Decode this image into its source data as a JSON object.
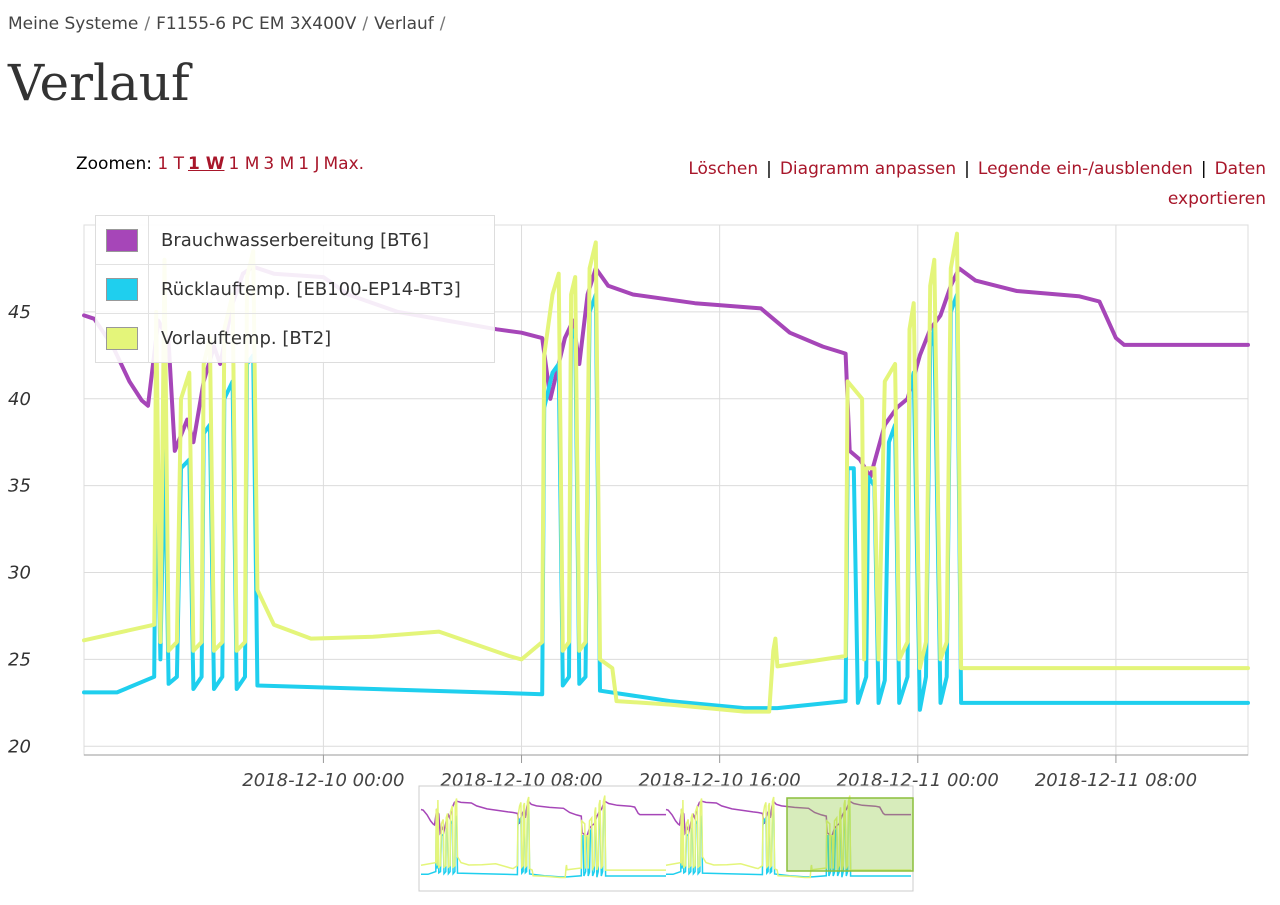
{
  "breadcrumb": [
    "Meine Systeme",
    "F1155-6 PC EM 3X400V",
    "Verlauf"
  ],
  "breadcrumb_sep": "/",
  "page_title": "Verlauf",
  "zoom": {
    "label": "Zoomen:",
    "options": [
      "1 T",
      "1 W",
      "1 M",
      "3 M",
      "1 J",
      "Max."
    ],
    "active": "1 W"
  },
  "actions": {
    "clear": "Löschen",
    "customize": "Diagramm anpassen",
    "toggle_legend": "Legende ein-/ausblenden",
    "export_line1": "Daten",
    "export_line2": "exportieren",
    "separator": "|"
  },
  "chart_data": {
    "type": "line",
    "xlabel": "",
    "ylabel": "",
    "ylim": [
      19.5,
      50
    ],
    "yticks": [
      20,
      25,
      30,
      35,
      40,
      45
    ],
    "xlim": [
      "2018-12-09 14:20",
      "2018-12-11 13:20"
    ],
    "xticks": [
      "2018-12-10 00:00",
      "2018-12-10 08:00",
      "2018-12-10 16:00",
      "2018-12-11 00:00",
      "2018-12-11 08:00"
    ],
    "grid": true,
    "legend_position": "top-left",
    "series": [
      {
        "name": "Brauchwasserbereitung [BT6]",
        "color": "#a646b8",
        "points": [
          [
            "2018-12-09 14:20",
            44.8
          ],
          [
            "2018-12-09 14:45",
            44.6
          ],
          [
            "2018-12-09 15:30",
            43.0
          ],
          [
            "2018-12-09 16:10",
            41.0
          ],
          [
            "2018-12-09 16:40",
            39.9
          ],
          [
            "2018-12-09 16:55",
            39.6
          ],
          [
            "2018-12-09 17:20",
            44.5
          ],
          [
            "2018-12-09 17:45",
            43.3
          ],
          [
            "2018-12-09 18:00",
            37.0
          ],
          [
            "2018-12-09 18:30",
            38.8
          ],
          [
            "2018-12-09 18:45",
            37.5
          ],
          [
            "2018-12-09 19:10",
            41.0
          ],
          [
            "2018-12-09 19:35",
            43.0
          ],
          [
            "2018-12-09 19:50",
            42.0
          ],
          [
            "2018-12-09 20:20",
            45.5
          ],
          [
            "2018-12-09 20:45",
            47.2
          ],
          [
            "2018-12-09 21:10",
            47.6
          ],
          [
            "2018-12-09 22:00",
            47.2
          ],
          [
            "2018-12-10 00:00",
            47.0
          ],
          [
            "2018-12-10 01:00",
            46.0
          ],
          [
            "2018-12-10 03:00",
            45.0
          ],
          [
            "2018-12-10 05:00",
            44.5
          ],
          [
            "2018-12-10 07:00",
            44.0
          ],
          [
            "2018-12-10 08:00",
            43.8
          ],
          [
            "2018-12-10 08:50",
            43.5
          ],
          [
            "2018-12-10 09:10",
            40.0
          ],
          [
            "2018-12-10 09:45",
            43.5
          ],
          [
            "2018-12-10 10:05",
            44.5
          ],
          [
            "2018-12-10 10:20",
            42.0
          ],
          [
            "2018-12-10 10:40",
            46.0
          ],
          [
            "2018-12-10 11:00",
            47.5
          ],
          [
            "2018-12-10 11:30",
            46.5
          ],
          [
            "2018-12-10 12:30",
            46.0
          ],
          [
            "2018-12-10 15:00",
            45.5
          ],
          [
            "2018-12-10 17:40",
            45.2
          ],
          [
            "2018-12-10 18:50",
            43.8
          ],
          [
            "2018-12-10 20:10",
            43.0
          ],
          [
            "2018-12-10 21:05",
            42.6
          ],
          [
            "2018-12-10 21:15",
            37.0
          ],
          [
            "2018-12-10 21:40",
            36.5
          ],
          [
            "2018-12-10 22:05",
            35.5
          ],
          [
            "2018-12-10 22:40",
            38.5
          ],
          [
            "2018-12-10 23:10",
            39.5
          ],
          [
            "2018-12-10 23:35",
            40.0
          ],
          [
            "2018-12-11 00:05",
            42.5
          ],
          [
            "2018-12-11 00:30",
            44.0
          ],
          [
            "2018-12-11 00:55",
            44.8
          ],
          [
            "2018-12-11 01:20",
            46.5
          ],
          [
            "2018-12-11 01:40",
            47.5
          ],
          [
            "2018-12-11 02:20",
            46.8
          ],
          [
            "2018-12-11 04:00",
            46.2
          ],
          [
            "2018-12-11 06:30",
            45.9
          ],
          [
            "2018-12-11 07:20",
            45.6
          ],
          [
            "2018-12-11 08:00",
            43.5
          ],
          [
            "2018-12-11 08:20",
            43.1
          ],
          [
            "2018-12-11 13:20",
            43.1
          ]
        ]
      },
      {
        "name": "Rücklauftemp. [EB100-EP14-BT3]",
        "color": "#1fcfee",
        "points": [
          [
            "2018-12-09 14:20",
            23.1
          ],
          [
            "2018-12-09 15:40",
            23.1
          ],
          [
            "2018-12-09 17:10",
            24.0
          ],
          [
            "2018-12-09 17:15",
            38.0
          ],
          [
            "2018-12-09 17:25",
            25.0
          ],
          [
            "2018-12-09 17:35",
            38.0
          ],
          [
            "2018-12-09 17:45",
            23.6
          ],
          [
            "2018-12-09 18:05",
            24.0
          ],
          [
            "2018-12-09 18:15",
            36.0
          ],
          [
            "2018-12-09 18:35",
            36.5
          ],
          [
            "2018-12-09 18:45",
            23.3
          ],
          [
            "2018-12-09 19:05",
            24.0
          ],
          [
            "2018-12-09 19:10",
            38.0
          ],
          [
            "2018-12-09 19:25",
            38.5
          ],
          [
            "2018-12-09 19:35",
            23.3
          ],
          [
            "2018-12-09 19:55",
            24.0
          ],
          [
            "2018-12-09 20:00",
            40.0
          ],
          [
            "2018-12-09 20:20",
            41.0
          ],
          [
            "2018-12-09 20:30",
            23.3
          ],
          [
            "2018-12-09 20:50",
            24.0
          ],
          [
            "2018-12-09 20:55",
            42.0
          ],
          [
            "2018-12-09 21:10",
            42.5
          ],
          [
            "2018-12-09 21:20",
            23.5
          ],
          [
            "2018-12-10 08:50",
            23.0
          ],
          [
            "2018-12-10 08:55",
            39.5
          ],
          [
            "2018-12-10 09:15",
            41.5
          ],
          [
            "2018-12-10 09:30",
            42.0
          ],
          [
            "2018-12-10 09:40",
            23.5
          ],
          [
            "2018-12-10 09:55",
            24.0
          ],
          [
            "2018-12-10 10:00",
            43.5
          ],
          [
            "2018-12-10 10:10",
            44.0
          ],
          [
            "2018-12-10 10:20",
            23.6
          ],
          [
            "2018-12-10 10:35",
            24.0
          ],
          [
            "2018-12-10 10:45",
            45.0
          ],
          [
            "2018-12-10 11:00",
            46.0
          ],
          [
            "2018-12-10 11:10",
            23.2
          ],
          [
            "2018-12-10 14:00",
            22.6
          ],
          [
            "2018-12-10 17:00",
            22.2
          ],
          [
            "2018-12-10 18:20",
            22.2
          ],
          [
            "2018-12-10 21:05",
            22.6
          ],
          [
            "2018-12-10 21:10",
            36.0
          ],
          [
            "2018-12-10 21:25",
            36.0
          ],
          [
            "2018-12-10 21:35",
            22.5
          ],
          [
            "2018-12-10 21:55",
            24.0
          ],
          [
            "2018-12-10 22:00",
            35.5
          ],
          [
            "2018-12-10 22:15",
            35.0
          ],
          [
            "2018-12-10 22:25",
            22.5
          ],
          [
            "2018-12-10 22:40",
            23.8
          ],
          [
            "2018-12-10 22:50",
            37.5
          ],
          [
            "2018-12-10 23:05",
            38.5
          ],
          [
            "2018-12-10 23:15",
            22.5
          ],
          [
            "2018-12-10 23:35",
            24.0
          ],
          [
            "2018-12-10 23:40",
            40.5
          ],
          [
            "2018-12-10 23:50",
            41.5
          ],
          [
            "2018-12-11 00:05",
            22.1
          ],
          [
            "2018-12-11 00:20",
            24.0
          ],
          [
            "2018-12-11 00:30",
            43.0
          ],
          [
            "2018-12-11 00:40",
            44.0
          ],
          [
            "2018-12-11 00:55",
            22.5
          ],
          [
            "2018-12-11 01:10",
            24.0
          ],
          [
            "2018-12-11 01:20",
            45.0
          ],
          [
            "2018-12-11 01:35",
            46.0
          ],
          [
            "2018-12-11 01:45",
            22.5
          ],
          [
            "2018-12-11 13:20",
            22.5
          ]
        ]
      },
      {
        "name": "Vorlauftemp. [BT2]",
        "color": "#e4f57a",
        "points": [
          [
            "2018-12-09 14:20",
            26.1
          ],
          [
            "2018-12-09 17:10",
            27.0
          ],
          [
            "2018-12-09 17:15",
            45.0
          ],
          [
            "2018-12-09 17:25",
            26.0
          ],
          [
            "2018-12-09 17:35",
            48.0
          ],
          [
            "2018-12-09 17:45",
            25.5
          ],
          [
            "2018-12-09 18:05",
            26.0
          ],
          [
            "2018-12-09 18:15",
            40.0
          ],
          [
            "2018-12-09 18:35",
            41.5
          ],
          [
            "2018-12-09 18:45",
            25.5
          ],
          [
            "2018-12-09 19:05",
            26.0
          ],
          [
            "2018-12-09 19:10",
            42.0
          ],
          [
            "2018-12-09 19:25",
            43.5
          ],
          [
            "2018-12-09 19:35",
            25.5
          ],
          [
            "2018-12-09 19:55",
            26.0
          ],
          [
            "2018-12-09 20:00",
            44.0
          ],
          [
            "2018-12-09 20:20",
            46.0
          ],
          [
            "2018-12-09 20:30",
            25.5
          ],
          [
            "2018-12-09 20:50",
            26.0
          ],
          [
            "2018-12-09 20:55",
            47.0
          ],
          [
            "2018-12-09 21:10",
            48.5
          ],
          [
            "2018-12-09 21:20",
            29.0
          ],
          [
            "2018-12-09 22:00",
            27.0
          ],
          [
            "2018-12-09 23:30",
            26.2
          ],
          [
            "2018-12-10 02:00",
            26.3
          ],
          [
            "2018-12-10 04:40",
            26.6
          ],
          [
            "2018-12-10 07:30",
            25.2
          ],
          [
            "2018-12-10 08:00",
            25.0
          ],
          [
            "2018-12-10 08:50",
            26.0
          ],
          [
            "2018-12-10 08:55",
            42.5
          ],
          [
            "2018-12-10 09:15",
            46.0
          ],
          [
            "2018-12-10 09:30",
            47.2
          ],
          [
            "2018-12-10 09:40",
            25.5
          ],
          [
            "2018-12-10 09:55",
            26.0
          ],
          [
            "2018-12-10 10:00",
            46.0
          ],
          [
            "2018-12-10 10:10",
            47.0
          ],
          [
            "2018-12-10 10:20",
            25.5
          ],
          [
            "2018-12-10 10:35",
            26.0
          ],
          [
            "2018-12-10 10:45",
            47.5
          ],
          [
            "2018-12-10 11:00",
            49.0
          ],
          [
            "2018-12-10 11:10",
            25.0
          ],
          [
            "2018-12-10 11:40",
            24.5
          ],
          [
            "2018-12-10 11:50",
            22.6
          ],
          [
            "2018-12-10 14:00",
            22.4
          ],
          [
            "2018-12-10 17:00",
            22.0
          ],
          [
            "2018-12-10 18:00",
            22.0
          ],
          [
            "2018-12-10 18:10",
            25.5
          ],
          [
            "2018-12-10 18:15",
            26.2
          ],
          [
            "2018-12-10 18:20",
            24.6
          ],
          [
            "2018-12-10 21:05",
            25.2
          ],
          [
            "2018-12-10 21:10",
            41.0
          ],
          [
            "2018-12-10 21:45",
            40.0
          ],
          [
            "2018-12-10 21:50",
            25.0
          ],
          [
            "2018-12-10 21:55",
            36.0
          ],
          [
            "2018-12-10 22:15",
            36.0
          ],
          [
            "2018-12-10 22:25",
            25.0
          ],
          [
            "2018-12-10 22:40",
            41.0
          ],
          [
            "2018-12-10 23:05",
            42.0
          ],
          [
            "2018-12-10 23:15",
            25.0
          ],
          [
            "2018-12-10 23:35",
            26.0
          ],
          [
            "2018-12-10 23:40",
            44.0
          ],
          [
            "2018-12-10 23:50",
            45.5
          ],
          [
            "2018-12-11 00:05",
            24.5
          ],
          [
            "2018-12-11 00:20",
            26.0
          ],
          [
            "2018-12-11 00:30",
            46.5
          ],
          [
            "2018-12-11 00:40",
            48.0
          ],
          [
            "2018-12-11 00:55",
            25.0
          ],
          [
            "2018-12-11 01:10",
            26.0
          ],
          [
            "2018-12-11 01:20",
            47.5
          ],
          [
            "2018-12-11 01:35",
            49.5
          ],
          [
            "2018-12-11 01:45",
            24.5
          ],
          [
            "2018-12-11 13:20",
            24.5
          ]
        ]
      }
    ]
  }
}
